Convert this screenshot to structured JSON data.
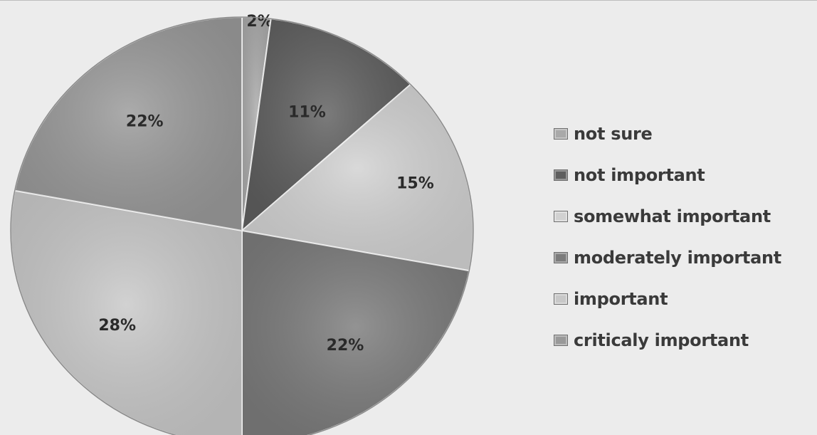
{
  "chart_data": {
    "type": "pie",
    "slices": [
      {
        "category": "not sure",
        "value": 2,
        "label": "2%",
        "color": "#a9a9a9"
      },
      {
        "category": "not important",
        "value": 11,
        "label": "11%",
        "color": "#5e5e5e"
      },
      {
        "category": "somewhat important",
        "value": 15,
        "label": "15%",
        "color": "#d1d1d1"
      },
      {
        "category": "moderately important",
        "value": 22,
        "label": "22%",
        "color": "#7b7b7b"
      },
      {
        "category": "important",
        "value": 28,
        "label": "28%",
        "color": "#c8c8c8"
      },
      {
        "category": "criticaly important",
        "value": 22,
        "label": "22%",
        "color": "#999999"
      }
    ],
    "legend_position": "right"
  }
}
